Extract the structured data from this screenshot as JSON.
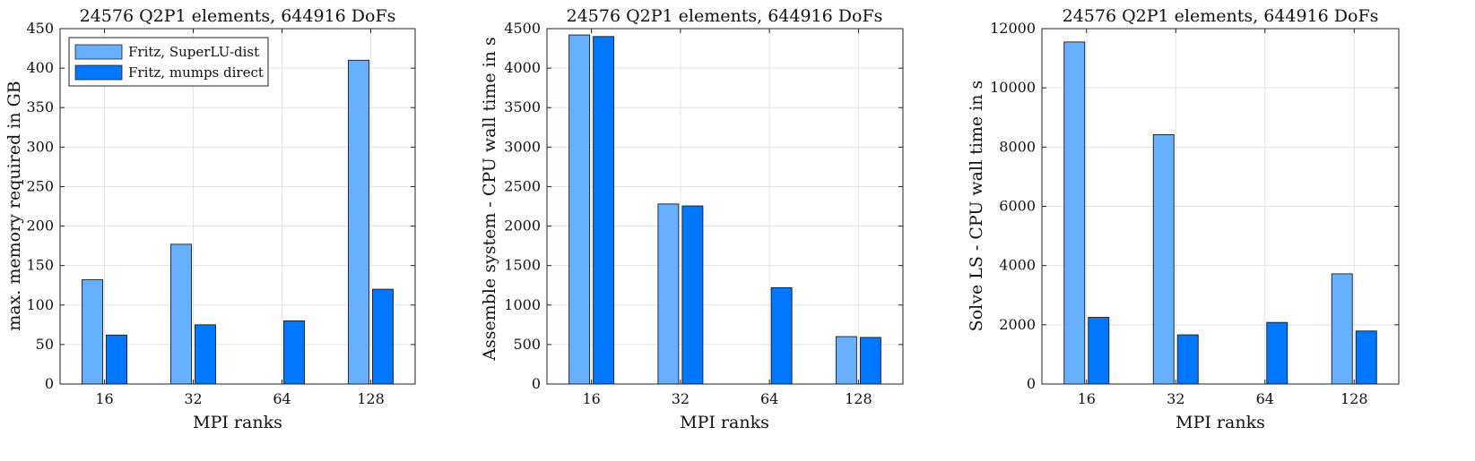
{
  "colors": {
    "series1": "#66b0ff",
    "series2": "#0077ff",
    "grid": "#e3e3e3",
    "axis": "#222222"
  },
  "chart_data": [
    {
      "type": "bar",
      "title": "24576 Q2P1 elements, 644916 DoFs",
      "xlabel": "MPI ranks",
      "ylabel": "max. memory required in GB",
      "categories": [
        "16",
        "32",
        "64",
        "128"
      ],
      "ylim": [
        0,
        450
      ],
      "yticks": [
        "0",
        "50",
        "100",
        "150",
        "200",
        "250",
        "300",
        "350",
        "400",
        "450"
      ],
      "grid": true,
      "legend_position": "top-left",
      "series": [
        {
          "name": "Fritz, SuperLU-dist",
          "values": [
            132,
            177,
            0,
            410
          ]
        },
        {
          "name": "Fritz, mumps direct",
          "values": [
            62,
            75,
            80,
            120
          ]
        }
      ]
    },
    {
      "type": "bar",
      "title": "24576 Q2P1 elements, 644916 DoFs",
      "xlabel": "MPI ranks",
      "ylabel": "Assemble system - CPU  wall time in s",
      "categories": [
        "16",
        "32",
        "64",
        "128"
      ],
      "ylim": [
        0,
        4500
      ],
      "yticks": [
        "0",
        "500",
        "1000",
        "1500",
        "2000",
        "2500",
        "3000",
        "3500",
        "4000",
        "4500"
      ],
      "grid": true,
      "series": [
        {
          "values": [
            4420,
            2280,
            0,
            600
          ]
        },
        {
          "values": [
            4400,
            2255,
            1220,
            590
          ]
        }
      ]
    },
    {
      "type": "bar",
      "title": "24576 Q2P1 elements, 644916 DoFs",
      "xlabel": "MPI ranks",
      "ylabel": "Solve LS - CPU  wall time in s",
      "categories": [
        "16",
        "32",
        "64",
        "128"
      ],
      "ylim": [
        0,
        12000
      ],
      "yticks": [
        "0",
        "2000",
        "4000",
        "6000",
        "8000",
        "10000",
        "12000"
      ],
      "grid": true,
      "series": [
        {
          "values": [
            11550,
            8420,
            0,
            3720
          ]
        },
        {
          "values": [
            2250,
            1660,
            2080,
            1790
          ]
        }
      ]
    }
  ]
}
